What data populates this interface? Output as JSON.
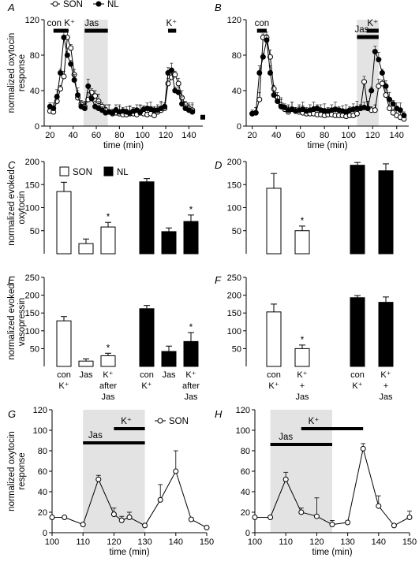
{
  "chart_data": [
    {
      "panel": "A",
      "type": "line",
      "ylabel": "normalized oxytocin response",
      "xlabel": "time (min)",
      "xlim": [
        15,
        152
      ],
      "ylim": [
        0,
        120
      ],
      "xticks": [
        20,
        40,
        60,
        80,
        100,
        120,
        140
      ],
      "yticks": [
        0,
        40,
        80,
        120
      ],
      "legend": [
        "SON",
        "NL"
      ],
      "shade": [
        49,
        70
      ],
      "bars": [
        {
          "label": "con K⁺",
          "x": [
            23,
            36
          ],
          "label_x": 29.5
        },
        {
          "label": "Jas",
          "x": [
            50,
            70
          ],
          "label_x": 56
        },
        {
          "label": "K⁺",
          "x": [
            122,
            129
          ],
          "label_x": 125
        }
      ],
      "series": [
        {
          "name": "SON",
          "marker": "open",
          "x": [
            20,
            23,
            26,
            29,
            32,
            35,
            38,
            41,
            44,
            47,
            50,
            53,
            56,
            59,
            62,
            65,
            68,
            71,
            74,
            77,
            80,
            83,
            86,
            89,
            92,
            95,
            98,
            101,
            104,
            107,
            110,
            113,
            116,
            119,
            122,
            125,
            128,
            131,
            134,
            137,
            140,
            143
          ],
          "y": [
            17,
            16,
            28,
            42,
            56,
            100,
            88,
            58,
            32,
            25,
            22,
            30,
            38,
            34,
            28,
            22,
            18,
            16,
            14,
            15,
            14,
            13,
            13,
            14,
            14,
            13,
            15,
            14,
            13,
            14,
            12,
            16,
            18,
            20,
            48,
            55,
            58,
            48,
            32,
            24,
            20,
            18
          ]
        },
        {
          "name": "NL",
          "marker": "filled",
          "x": [
            20,
            23,
            26,
            29,
            32,
            35,
            38,
            41,
            44,
            47,
            50,
            53,
            56,
            59,
            62,
            65,
            68,
            71,
            74,
            77,
            80,
            83,
            86,
            89,
            92,
            95,
            98,
            101,
            104,
            107,
            110,
            113,
            116,
            119,
            122,
            125,
            128,
            131,
            134,
            137,
            140,
            143
          ],
          "y": [
            22,
            20,
            33,
            60,
            100,
            80,
            70,
            52,
            35,
            22,
            20,
            45,
            31,
            22,
            20,
            18,
            15,
            16,
            15,
            18,
            16,
            17,
            16,
            15,
            17,
            18,
            16,
            19,
            20,
            19,
            18,
            18,
            20,
            22,
            60,
            63,
            40,
            38,
            25,
            20,
            18,
            16
          ]
        }
      ],
      "extra_point": {
        "x": 152,
        "y": 10
      }
    },
    {
      "panel": "B",
      "type": "line",
      "ylabel": "",
      "xlabel": "time (min)",
      "xlim": [
        15,
        150
      ],
      "ylim": [
        0,
        120
      ],
      "xticks": [
        20,
        40,
        60,
        80,
        100,
        120,
        140
      ],
      "yticks": [
        0,
        40,
        80,
        120
      ],
      "shade": [
        107,
        125
      ],
      "bars": [
        {
          "label": "con",
          "x": [
            24,
            32
          ],
          "label_x": 28
        },
        {
          "label": "K⁺",
          "x": [
            115,
            125
          ],
          "label_x": 120
        },
        {
          "label": "Jas",
          "x": [
            107,
            125
          ],
          "label_x": 111
        }
      ],
      "series": [
        {
          "name": "SON",
          "marker": "open",
          "x": [
            20,
            23,
            26,
            29,
            32,
            35,
            38,
            41,
            44,
            47,
            50,
            53,
            56,
            59,
            62,
            65,
            68,
            71,
            74,
            77,
            80,
            83,
            86,
            89,
            92,
            95,
            98,
            101,
            104,
            107,
            110,
            113,
            116,
            119,
            122,
            125,
            128,
            131,
            134,
            137,
            140,
            143,
            146
          ],
          "y": [
            14,
            15,
            30,
            100,
            100,
            78,
            42,
            32,
            24,
            19,
            16,
            19,
            17,
            16,
            15,
            14,
            14,
            14,
            13,
            13,
            12,
            13,
            13,
            12,
            12,
            12,
            11,
            12,
            12,
            14,
            20,
            50,
            20,
            18,
            18,
            45,
            48,
            35,
            20,
            15,
            12,
            10,
            8
          ]
        },
        {
          "name": "NL",
          "marker": "filled",
          "x": [
            20,
            23,
            26,
            29,
            32,
            35,
            38,
            41,
            44,
            47,
            50,
            53,
            56,
            59,
            62,
            65,
            68,
            71,
            74,
            77,
            80,
            83,
            86,
            89,
            92,
            95,
            98,
            101,
            104,
            107,
            110,
            113,
            116,
            119,
            122,
            125,
            128,
            131,
            134,
            137,
            140,
            143,
            146
          ],
          "y": [
            14,
            15,
            60,
            78,
            97,
            60,
            35,
            28,
            22,
            21,
            18,
            19,
            17,
            18,
            19,
            17,
            18,
            19,
            20,
            18,
            17,
            17,
            18,
            19,
            18,
            17,
            16,
            18,
            19,
            20,
            20,
            21,
            20,
            40,
            84,
            75,
            60,
            45,
            30,
            25,
            20,
            18,
            12
          ]
        }
      ]
    },
    {
      "panel": "C",
      "type": "bar",
      "ylabel": "normalized evoked oxytocin",
      "ylim": [
        0,
        200
      ],
      "yticks": [
        50,
        100,
        150,
        200
      ],
      "legend": [
        "SON",
        "NL"
      ],
      "categories": [
        "con K⁺",
        "Jas",
        "K⁺ after Jas"
      ],
      "series": [
        {
          "name": "SON",
          "values": [
            135,
            22,
            58
          ],
          "errors": [
            20,
            10,
            10
          ]
        },
        {
          "name": "NL",
          "values": [
            156,
            48,
            70
          ],
          "errors": [
            7,
            8,
            14
          ]
        }
      ],
      "significant": [
        "SON:K⁺ after Jas",
        "NL:K⁺ after Jas"
      ]
    },
    {
      "panel": "D",
      "type": "bar",
      "ylabel": "",
      "ylim": [
        0,
        200
      ],
      "yticks": [
        50,
        100,
        150,
        200
      ],
      "categories": [
        "con K⁺",
        "K⁺ + Jas"
      ],
      "series": [
        {
          "name": "SON",
          "values": [
            142,
            50
          ],
          "errors": [
            32,
            10
          ]
        },
        {
          "name": "NL",
          "values": [
            192,
            180
          ],
          "errors": [
            6,
            15
          ]
        }
      ],
      "significant": [
        "SON:K⁺ + Jas"
      ]
    },
    {
      "panel": "E",
      "type": "bar",
      "ylabel": "normalized evoked vasopressin",
      "ylim": [
        0,
        250
      ],
      "yticks": [
        50,
        100,
        150,
        200,
        250
      ],
      "categories": [
        "con K⁺",
        "Jas",
        "K⁺ after Jas"
      ],
      "series": [
        {
          "name": "SON",
          "values": [
            128,
            15,
            30
          ],
          "errors": [
            12,
            6,
            7
          ]
        },
        {
          "name": "NL",
          "values": [
            162,
            42,
            70
          ],
          "errors": [
            9,
            15,
            25
          ]
        }
      ],
      "significant": [
        "SON:K⁺ after Jas",
        "NL:K⁺ after Jas"
      ]
    },
    {
      "panel": "F",
      "type": "bar",
      "ylabel": "",
      "ylim": [
        0,
        250
      ],
      "yticks": [
        50,
        100,
        150,
        200,
        250
      ],
      "categories": [
        "con K⁺",
        "K⁺ + Jas"
      ],
      "series": [
        {
          "name": "SON",
          "values": [
            153,
            50
          ],
          "errors": [
            22,
            10
          ]
        },
        {
          "name": "NL",
          "values": [
            193,
            180
          ],
          "errors": [
            6,
            15
          ]
        }
      ],
      "significant": [
        "SON:K⁺ + Jas"
      ]
    },
    {
      "panel": "G",
      "type": "line",
      "ylabel": "normalized oxytocin response",
      "xlabel": "time (min)",
      "xlim": [
        100,
        150
      ],
      "ylim": [
        0,
        120
      ],
      "xticks": [
        100,
        110,
        120,
        130,
        140,
        150
      ],
      "yticks": [
        0,
        20,
        40,
        60,
        80,
        100,
        120
      ],
      "legend": [
        "SON"
      ],
      "shade": [
        110,
        130
      ],
      "bars": [
        {
          "label": "K⁺",
          "x": [
            120,
            130
          ],
          "label_x": 124
        },
        {
          "label": "Jas",
          "x": [
            110,
            130
          ],
          "label_x": 114
        }
      ],
      "series": [
        {
          "name": "SON",
          "marker": "open",
          "x": [
            100,
            104,
            110,
            115,
            120,
            122.5,
            125,
            130,
            135,
            140,
            145,
            150
          ],
          "y": [
            15,
            15,
            8,
            52,
            18,
            12,
            15,
            7,
            32,
            60,
            13,
            5
          ],
          "errors": [
            0,
            0,
            0,
            4,
            6,
            4,
            5,
            0,
            15,
            20,
            0,
            0
          ]
        }
      ]
    },
    {
      "panel": "H",
      "type": "line",
      "ylabel": "",
      "xlabel": "time (min)",
      "xlim": [
        100,
        150
      ],
      "ylim": [
        0,
        120
      ],
      "xticks": [
        100,
        110,
        120,
        130,
        140,
        150
      ],
      "yticks": [
        0,
        20,
        40,
        60,
        80,
        100,
        120
      ],
      "shade": [
        105,
        125
      ],
      "bars": [
        {
          "label": "K⁺",
          "x": [
            115,
            135
          ],
          "label_x": 119
        },
        {
          "label": "Jas",
          "x": [
            105,
            125
          ],
          "label_x": 110
        }
      ],
      "series": [
        {
          "name": "SON",
          "marker": "open",
          "x": [
            100,
            105,
            110,
            115,
            120,
            125,
            130,
            135,
            140,
            145,
            150
          ],
          "y": [
            15,
            15,
            52,
            20,
            16,
            8,
            10,
            82,
            26,
            7,
            15
          ],
          "errors": [
            0,
            0,
            7,
            4,
            18,
            4,
            0,
            5,
            10,
            0,
            6
          ]
        }
      ]
    }
  ]
}
